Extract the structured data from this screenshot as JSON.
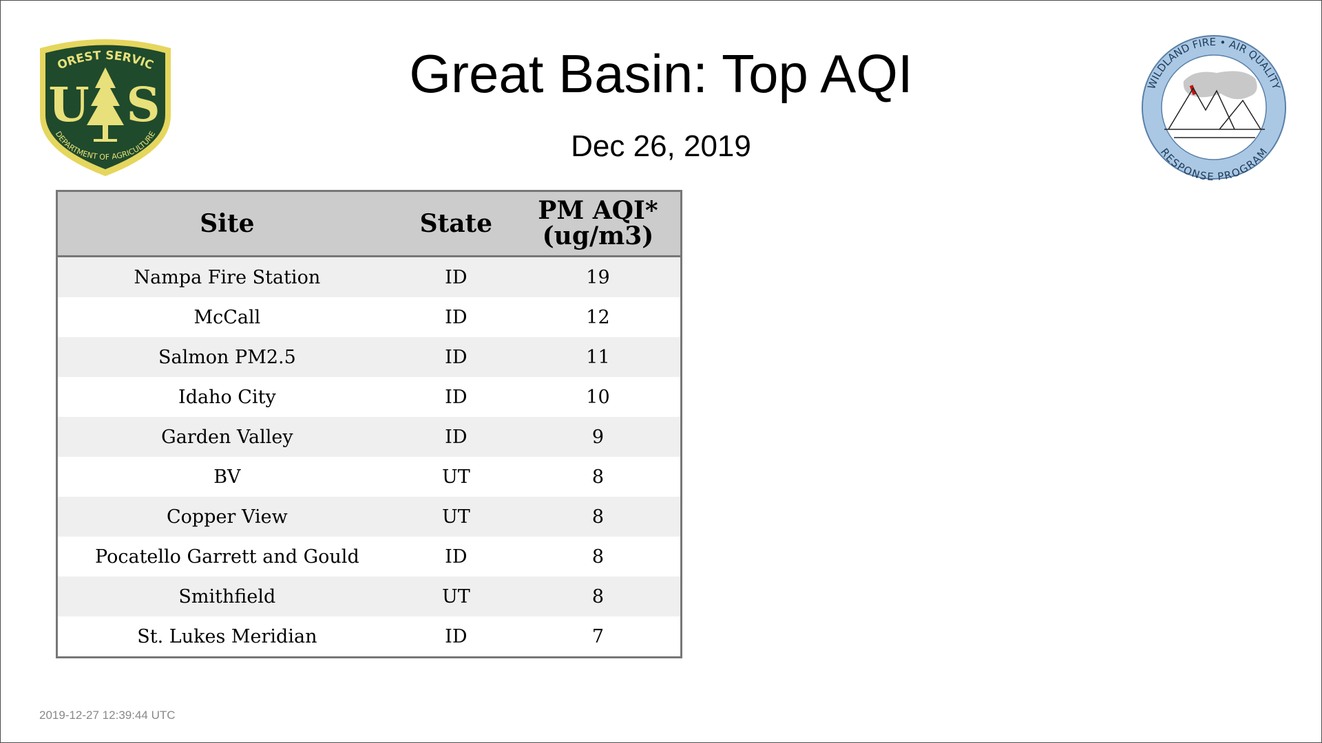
{
  "header": {
    "title": "Great Basin: Top AQI",
    "date": "Dec 26, 2019"
  },
  "logos": {
    "left": {
      "icon": "forest-service-shield-icon",
      "top_text": "FOREST SERVICE",
      "letters_left": "U",
      "letters_right": "S",
      "bottom_text": "DEPARTMENT OF AGRICULTURE",
      "colors": {
        "shield": "#1f4a2c",
        "border": "#e5d65e",
        "text": "#e8e07a"
      }
    },
    "right": {
      "icon": "wildland-fire-air-quality-seal-icon",
      "top_text": "WILDLAND FIRE • AIR QUALITY",
      "bottom_text": "RESPONSE PROGRAM",
      "colors": {
        "ring": "#aac8e4",
        "smoke": "#c8c8c8",
        "flame": "#cc1111"
      }
    }
  },
  "table": {
    "headers": {
      "site": "Site",
      "state": "State",
      "value_line1": "PM AQI*",
      "value_line2": "(ug/m3)"
    },
    "rows": [
      {
        "site": "Nampa Fire Station",
        "state": "ID",
        "value": "19"
      },
      {
        "site": "McCall",
        "state": "ID",
        "value": "12"
      },
      {
        "site": "Salmon PM2.5",
        "state": "ID",
        "value": "11"
      },
      {
        "site": "Idaho City",
        "state": "ID",
        "value": "10"
      },
      {
        "site": "Garden Valley",
        "state": "ID",
        "value": "9"
      },
      {
        "site": "BV",
        "state": "UT",
        "value": "8"
      },
      {
        "site": "Copper View",
        "state": "UT",
        "value": "8"
      },
      {
        "site": "Pocatello Garrett and Gould",
        "state": "ID",
        "value": "8"
      },
      {
        "site": "Smithfield",
        "state": "UT",
        "value": "8"
      },
      {
        "site": "St. Lukes Meridian",
        "state": "ID",
        "value": "7"
      }
    ]
  },
  "footer": {
    "timestamp": "2019-12-27 12:39:44 UTC"
  }
}
